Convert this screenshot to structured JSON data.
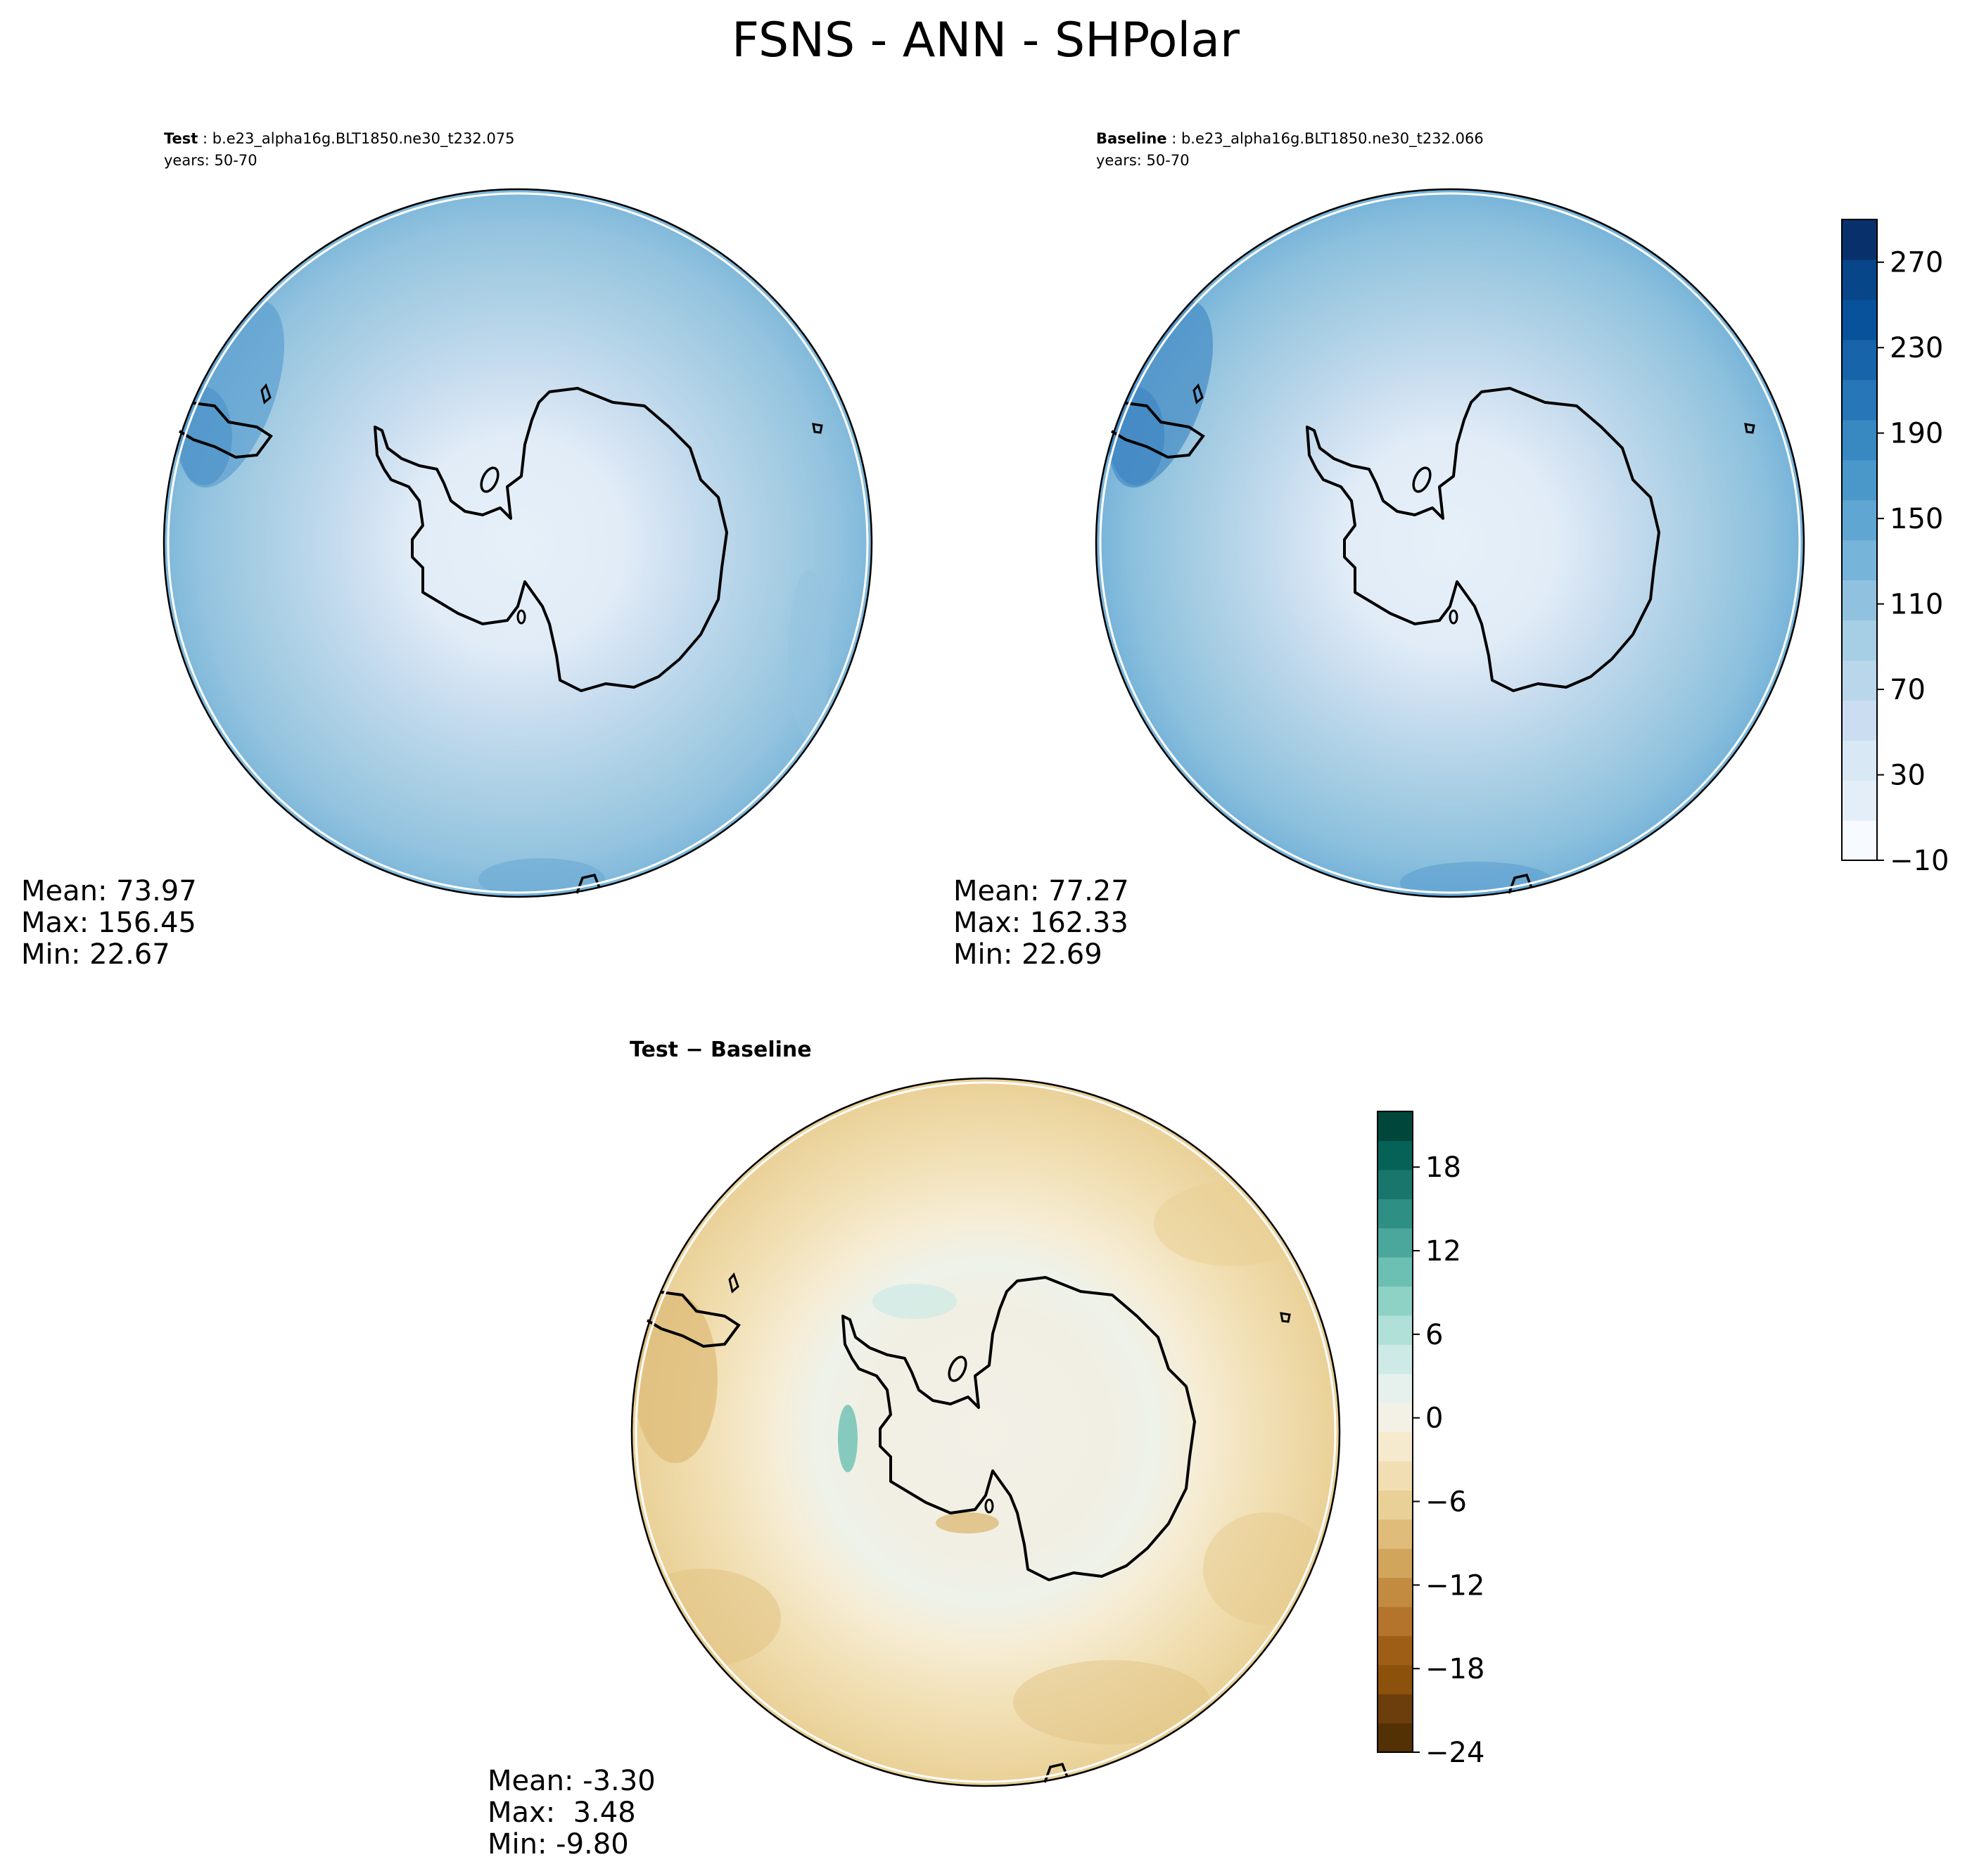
{
  "figure": {
    "title": "FSNS - ANN - SHPolar"
  },
  "panels": {
    "test": {
      "label_bold": "Test",
      "label_rest": " : b.e23_alpha16g.BLT1850.ne30_t232.075",
      "years": "years: 50-70",
      "stats": [
        "Mean: 73.97",
        "Max: 156.45",
        "Min: 22.67"
      ]
    },
    "baseline": {
      "label_bold": "Baseline",
      "label_rest": " : b.e23_alpha16g.BLT1850.ne30_t232.066",
      "years": "years: 50-70",
      "stats": [
        "Mean: 77.27",
        "Max: 162.33",
        "Min: 22.69"
      ]
    },
    "diff": {
      "label_bold": "Test − Baseline",
      "stats": [
        "Mean: -3.30",
        "Max:  3.48",
        "Min: -9.80"
      ]
    }
  },
  "colorbars": {
    "main": {
      "ticks": [
        "−10",
        "30",
        "70",
        "110",
        "150",
        "190",
        "230",
        "270"
      ],
      "tick_values": [
        -10,
        30,
        70,
        110,
        150,
        190,
        230,
        270
      ],
      "range": [
        -10,
        290
      ],
      "colors": [
        "#f7fbff",
        "#e3eef9",
        "#d9e8f5",
        "#cbdef1",
        "#b9d6ea",
        "#a6cee4",
        "#90c2df",
        "#77b4da",
        "#60a6d2",
        "#4a98c9",
        "#3888c1",
        "#2676b8",
        "#1764ab",
        "#08529b",
        "#08468a",
        "#08306b"
      ]
    },
    "diff": {
      "ticks": [
        "−24",
        "−18",
        "−12",
        "−6",
        "0",
        "6",
        "12",
        "18"
      ],
      "tick_values": [
        -24,
        -18,
        -12,
        -6,
        0,
        6,
        12,
        18
      ],
      "range": [
        -24,
        22
      ],
      "colors": [
        "#543005",
        "#6b3e0b",
        "#8c510a",
        "#9e5e15",
        "#b4742b",
        "#c38b40",
        "#d2a55d",
        "#dfbc79",
        "#e9d096",
        "#f1dfb3",
        "#f5eacd",
        "#f3f1e5",
        "#e6f1ee",
        "#cdeae6",
        "#b0e0d7",
        "#8ed2c6",
        "#6cc0b3",
        "#4ba79b",
        "#2e8f84",
        "#18766c",
        "#066257",
        "#01463b"
      ]
    }
  },
  "chart_data": [
    {
      "type": "heatmap",
      "projection": "south polar stereographic",
      "title": "Test : b.e23_alpha16g.BLT1850.ne30_t232.075",
      "subtitle": "years: 50-70",
      "statistics": {
        "mean": 73.97,
        "max": 156.45,
        "min": 22.67
      },
      "colorbar": {
        "range": [
          -10,
          290
        ],
        "ticks": [
          -10,
          30,
          70,
          110,
          150,
          190,
          230,
          270
        ]
      }
    },
    {
      "type": "heatmap",
      "projection": "south polar stereographic",
      "title": "Baseline : b.e23_alpha16g.BLT1850.ne30_t232.066",
      "subtitle": "years: 50-70",
      "statistics": {
        "mean": 77.27,
        "max": 162.33,
        "min": 22.69
      },
      "colorbar": {
        "range": [
          -10,
          290
        ],
        "ticks": [
          -10,
          30,
          70,
          110,
          150,
          190,
          230,
          270
        ]
      }
    },
    {
      "type": "heatmap",
      "projection": "south polar stereographic",
      "title": "Test − Baseline",
      "statistics": {
        "mean": -3.3,
        "max": 3.48,
        "min": -9.8
      },
      "colorbar": {
        "range": [
          -24,
          22
        ],
        "ticks": [
          -24,
          -18,
          -12,
          -6,
          0,
          6,
          12,
          18
        ]
      }
    }
  ]
}
